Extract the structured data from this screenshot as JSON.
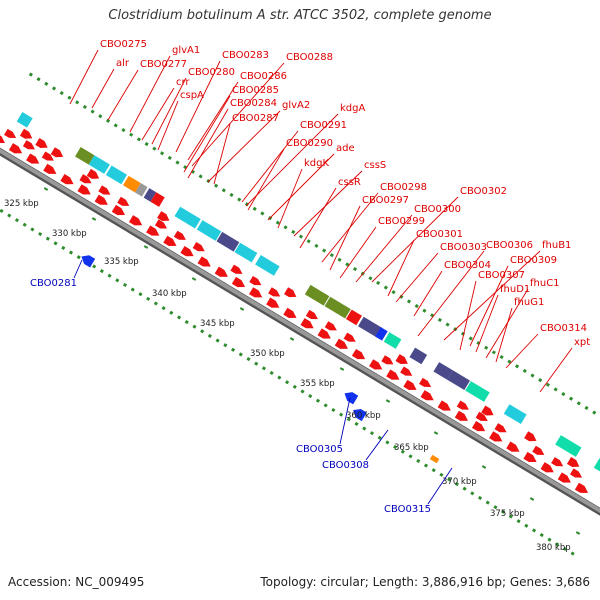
{
  "title": "Clostridium botulinum A str. ATCC 3502, complete genome",
  "footer": {
    "accession": "Accession: NC_009495",
    "topology": "Topology: circular; Length: 3,886,916 bp; Genes: 3,686"
  },
  "colors": {
    "forward_label": "#dd0000",
    "reverse_label": "#0000bb",
    "backbone": "#999999",
    "backbone_edge": "#555555",
    "tick": "#2e8b2e"
  },
  "scale_labels": [
    "325 kbp",
    "330 kbp",
    "335 kbp",
    "340 kbp",
    "345 kbp",
    "350 kbp",
    "355 kbp",
    "360 kbp",
    "365 kbp",
    "370 kbp",
    "375 kbp",
    "380 kbp"
  ],
  "forward_labels": [
    "CBO0275",
    "alr",
    "glvA1",
    "CBO0277",
    "CBO0283",
    "crr",
    "CBO0280",
    "CBO0288",
    "cspA",
    "CBO0286",
    "CBO0285",
    "CBO0284",
    "glvA2",
    "CBO0287",
    "kdgA",
    "CBO0291",
    "CBO0290",
    "ade",
    "kdgK",
    "cssS",
    "cssR",
    "CBO0298",
    "CBO0297",
    "CBO0302",
    "CBO0300",
    "CBO0299",
    "CBO0301",
    "CBO0303",
    "CBO0306",
    "fhuB1",
    "CBO0304",
    "CBO0309",
    "CBO0307",
    "fhuD1",
    "fhuC1",
    "fhuG1",
    "CBO0314",
    "xpt"
  ],
  "reverse_labels": [
    "CBO0281",
    "CBO0305",
    "CBO0308",
    "CBO0315"
  ],
  "feature_colors": {
    "cds": "#ee1111",
    "cyan": "#22ccdd",
    "olive": "#6b8e23",
    "orange": "#ff8c00",
    "slate": "#4a4a8a",
    "blue": "#1133ee",
    "teal": "#11ddaa",
    "gray": "#999999",
    "darkgreen": "#336633"
  }
}
